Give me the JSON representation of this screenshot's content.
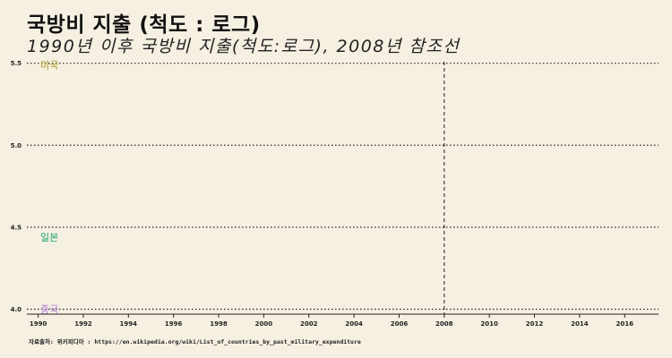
{
  "title": "국방비  지출 (척도 : 로그)",
  "subtitle": "1990년 이후 국방비 지출(척도:로그), 2008년 참조선",
  "caption": "자료출처: 위키피디아 : https://en.wikipedia.org/wiki/List_of_countries_by_past_military_expenditure",
  "chart_data": {
    "type": "line",
    "xlim": [
      1989.5,
      2017.5
    ],
    "ylim": [
      3.97,
      5.52
    ],
    "x_ticks": [
      1990,
      1992,
      1994,
      1996,
      1998,
      2000,
      2002,
      2004,
      2006,
      2008,
      2010,
      2012,
      2014,
      2016
    ],
    "y_ticks": [
      4.0,
      4.5,
      5.0,
      5.5
    ],
    "y_tick_labels": [
      "4.0",
      "4.5",
      "5.0",
      "5.5"
    ],
    "grid": "horizontal dotted",
    "reference_line": {
      "x": 2008,
      "style": "dashed"
    },
    "series": [
      {
        "name": "미국",
        "color": "#a39a1a",
        "label_point": [
          1990.5,
          5.49
        ]
      },
      {
        "name": "일본",
        "color": "#1aa56e",
        "label_point": [
          1990.5,
          4.44
        ]
      },
      {
        "name": "중국",
        "color": "#b07ad6",
        "label_point": [
          1990.5,
          4.0
        ]
      }
    ]
  }
}
